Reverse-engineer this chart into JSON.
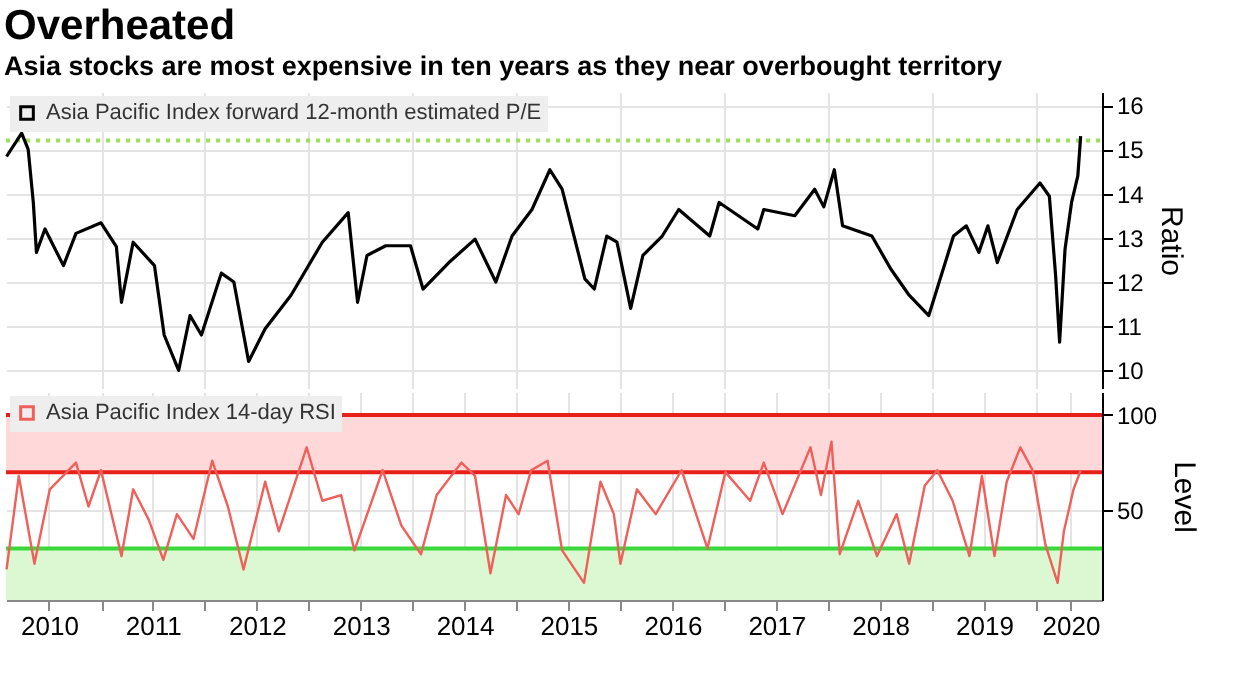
{
  "chart_data": [
    {
      "type": "line",
      "title": "Overheated",
      "subtitle": "Asia stocks are most expensive in ten years as they near overbought territory",
      "ylabel": "Ratio",
      "legend": "top left",
      "grid": true,
      "tick_labels": "y",
      "xlim": [
        "2010-02-01",
        "2020-08-20"
      ],
      "ylim": [
        9.6,
        16.3
      ],
      "yticks": [
        10,
        11,
        12,
        13,
        14,
        15,
        16
      ],
      "ref_lines": [
        {
          "axis": "y",
          "value": 15.2,
          "color": "#9ee05a",
          "line_style": "dotted"
        }
      ],
      "series": [
        {
          "name": "Asia Pacific Index forward 12-month estimated P/E",
          "color": "#000000",
          "x": [
            "2010-02-03",
            "2010-03-28",
            "2010-04-20",
            "2010-05-08",
            "2010-05-19",
            "2010-06-18",
            "2010-08-22",
            "2010-10-05",
            "2011-01-01",
            "2011-02-24",
            "2011-03-14",
            "2011-04-24",
            "2011-07-08",
            "2011-08-11",
            "2011-10-01",
            "2011-11-10",
            "2011-12-20",
            "2012-02-28",
            "2012-04-12",
            "2012-06-03",
            "2012-07-31",
            "2012-10-30",
            "2013-02-17",
            "2013-05-19",
            "2013-06-21",
            "2013-07-24",
            "2013-09-28",
            "2013-12-24",
            "2014-02-06",
            "2014-05-08",
            "2014-08-08",
            "2014-10-20",
            "2014-12-16",
            "2015-02-24",
            "2015-04-28",
            "2015-06-10",
            "2015-08-29",
            "2015-10-01",
            "2015-11-14",
            "2015-12-20",
            "2016-02-06",
            "2016-03-20",
            "2016-05-27",
            "2016-07-24",
            "2016-11-10",
            "2016-12-13",
            "2017-04-28",
            "2017-05-19",
            "2017-09-05",
            "2017-11-14",
            "2017-12-16",
            "2018-01-22",
            "2018-02-20",
            "2018-06-03",
            "2018-08-08",
            "2018-10-12",
            "2018-12-20",
            "2019-03-17",
            "2019-05-01",
            "2019-06-14",
            "2019-07-16",
            "2019-08-18",
            "2019-10-27",
            "2020-01-15",
            "2020-02-17",
            "2020-03-10",
            "2020-03-24",
            "2020-04-12",
            "2020-05-05",
            "2020-05-27",
            "2020-06-06"
          ],
          "values": [
            14.84,
            15.37,
            15.0,
            13.8,
            12.67,
            13.2,
            12.37,
            13.1,
            13.34,
            12.8,
            11.54,
            12.9,
            12.37,
            10.8,
            10.0,
            11.24,
            10.8,
            12.2,
            12.0,
            10.2,
            10.94,
            11.7,
            12.9,
            13.57,
            11.54,
            12.6,
            12.82,
            12.82,
            11.84,
            12.44,
            12.97,
            12.0,
            13.04,
            13.64,
            14.54,
            14.1,
            12.07,
            11.84,
            13.04,
            12.9,
            11.4,
            12.6,
            13.04,
            13.64,
            13.04,
            13.8,
            13.2,
            13.64,
            13.5,
            14.1,
            13.7,
            14.54,
            13.27,
            13.04,
            12.3,
            11.7,
            11.24,
            13.04,
            13.27,
            12.67,
            13.27,
            12.44,
            13.64,
            14.24,
            13.94,
            12.14,
            10.64,
            12.74,
            13.8,
            14.4,
            15.3
          ]
        }
      ]
    },
    {
      "type": "line",
      "ylabel": "Level",
      "legend": "top left",
      "grid": true,
      "xlim": [
        "2010-02-01",
        "2020-08-20"
      ],
      "ylim": [
        3,
        112
      ],
      "yticks": [
        50,
        100
      ],
      "xticks": [
        {
          "value": "2010-07-02",
          "label": "2010"
        },
        {
          "value": "2011-01-01",
          "label": null
        },
        {
          "value": "2011-07-02",
          "label": "2011"
        },
        {
          "value": "2012-01-01",
          "label": null
        },
        {
          "value": "2012-07-02",
          "label": "2012"
        },
        {
          "value": "2013-01-01",
          "label": null
        },
        {
          "value": "2013-07-02",
          "label": "2013"
        },
        {
          "value": "2014-01-01",
          "label": null
        },
        {
          "value": "2014-07-02",
          "label": "2014"
        },
        {
          "value": "2015-01-01",
          "label": null
        },
        {
          "value": "2015-07-02",
          "label": "2015"
        },
        {
          "value": "2016-01-01",
          "label": null
        },
        {
          "value": "2016-07-02",
          "label": "2016"
        },
        {
          "value": "2017-01-01",
          "label": null
        },
        {
          "value": "2017-07-02",
          "label": "2017"
        },
        {
          "value": "2018-01-01",
          "label": null
        },
        {
          "value": "2018-07-02",
          "label": "2018"
        },
        {
          "value": "2019-01-01",
          "label": null
        },
        {
          "value": "2019-07-02",
          "label": "2019"
        },
        {
          "value": "2020-01-01",
          "label": null
        },
        {
          "value": "2020-05-01",
          "label": "2020"
        }
      ],
      "bands": [
        {
          "axis": "y",
          "from": 70,
          "to": 100,
          "color": "#ffd9d9"
        },
        {
          "axis": "y",
          "from": 3,
          "to": 30,
          "color": "#dcf8d2"
        }
      ],
      "ref_lines": [
        {
          "axis": "y",
          "value": 100,
          "color": "#e8201a"
        },
        {
          "axis": "y",
          "value": 70,
          "color": "#e8201a"
        },
        {
          "axis": "y",
          "value": 30,
          "color": "#3ad83a"
        }
      ],
      "series": [
        {
          "name": "Asia Pacific Index 14-day RSI",
          "color": "#f0605a",
          "x": [
            "2010-02-03",
            "2010-03-18",
            "2010-05-12",
            "2010-07-05",
            "2010-10-05",
            "2010-11-18",
            "2011-01-01",
            "2011-03-14",
            "2011-04-24",
            "2011-06-18",
            "2011-08-08",
            "2011-09-25",
            "2011-11-22",
            "2012-01-27",
            "2012-03-22",
            "2012-05-16",
            "2012-07-31",
            "2012-09-17",
            "2012-12-24",
            "2013-02-17",
            "2013-04-24",
            "2013-06-10",
            "2013-09-17",
            "2013-11-22",
            "2014-01-30",
            "2014-03-26",
            "2014-06-21",
            "2014-08-08",
            "2014-10-01",
            "2014-11-25",
            "2015-01-08",
            "2015-02-21",
            "2015-04-20",
            "2015-06-10",
            "2015-08-26",
            "2015-10-23",
            "2015-12-09",
            "2016-01-01",
            "2016-02-28",
            "2016-05-04",
            "2016-08-03",
            "2016-11-02",
            "2017-01-04",
            "2017-04-01",
            "2017-05-19",
            "2017-07-24",
            "2017-10-30",
            "2017-12-06",
            "2018-01-12",
            "2018-02-10",
            "2018-04-16",
            "2018-06-21",
            "2018-08-29",
            "2018-10-12",
            "2018-12-06",
            "2019-01-19",
            "2019-03-14",
            "2019-05-12",
            "2019-06-25",
            "2019-08-08",
            "2019-09-20",
            "2019-11-07",
            "2019-12-20",
            "2020-02-03",
            "2020-03-17",
            "2020-04-08",
            "2020-05-12",
            "2020-06-06"
          ],
          "values": [
            19,
            68,
            22,
            61,
            75,
            52,
            71,
            26,
            61,
            45,
            24,
            48,
            35,
            76,
            52,
            19,
            65,
            39,
            83,
            55,
            58,
            29,
            71,
            42,
            27,
            58,
            75,
            68,
            17,
            58,
            48,
            71,
            76,
            29,
            12,
            65,
            48,
            22,
            61,
            48,
            71,
            30,
            70,
            55,
            75,
            48,
            83,
            58,
            86,
            27,
            55,
            26,
            48,
            22,
            63,
            71,
            55,
            26,
            68,
            26,
            65,
            83,
            71,
            32,
            12,
            39,
            61,
            71
          ]
        }
      ]
    }
  ]
}
